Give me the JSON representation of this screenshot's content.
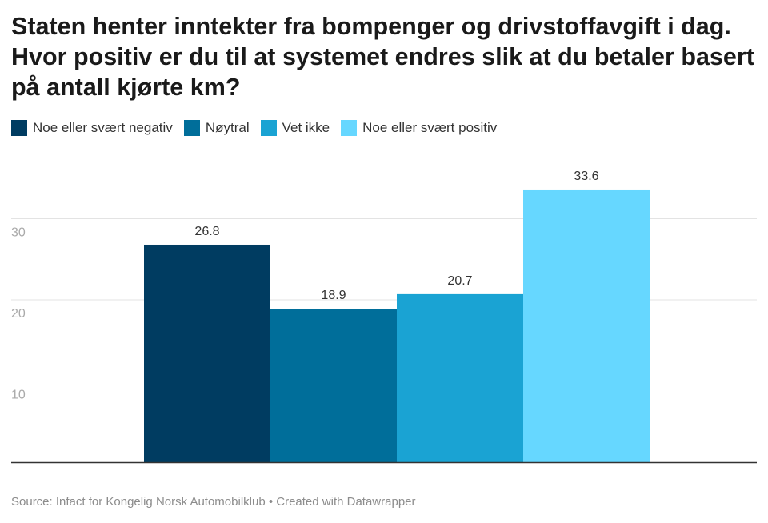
{
  "title": "Staten henter inntekter fra bompenger og drivstoffavgift i dag.  Hvor positiv er du til at systemet endres slik at du betaler basert på antall kjørte km?",
  "source": "Source: Infact for Kongelig Norsk Automobilklub • Created with Datawrapper",
  "chart_data": {
    "type": "bar",
    "categories": [
      "Noe eller svært negativ",
      "Nøytral",
      "Vet ikke",
      "Noe eller svært positiv"
    ],
    "values": [
      26.8,
      18.9,
      20.7,
      33.6
    ],
    "value_labels": [
      "26.8",
      "18.9",
      "20.7",
      "33.6"
    ],
    "colors": [
      "#003c61",
      "#006e9a",
      "#1aa3d3",
      "#66d7ff"
    ],
    "legend": [
      "Noe eller svært negativ",
      "Nøytral",
      "Vet ikke",
      "Noe eller svært positiv"
    ],
    "legend_position": "top-left",
    "yticks": [
      10,
      20,
      30
    ],
    "ytick_labels": [
      "10",
      "20",
      "30"
    ],
    "ylim": [
      0,
      35
    ],
    "grid": true,
    "title": "Staten henter inntekter fra bompenger og drivstoffavgift i dag.  Hvor positiv er du til at systemet endres slik at du betaler basert på antall kjørte km?",
    "xlabel": "",
    "ylabel": ""
  }
}
